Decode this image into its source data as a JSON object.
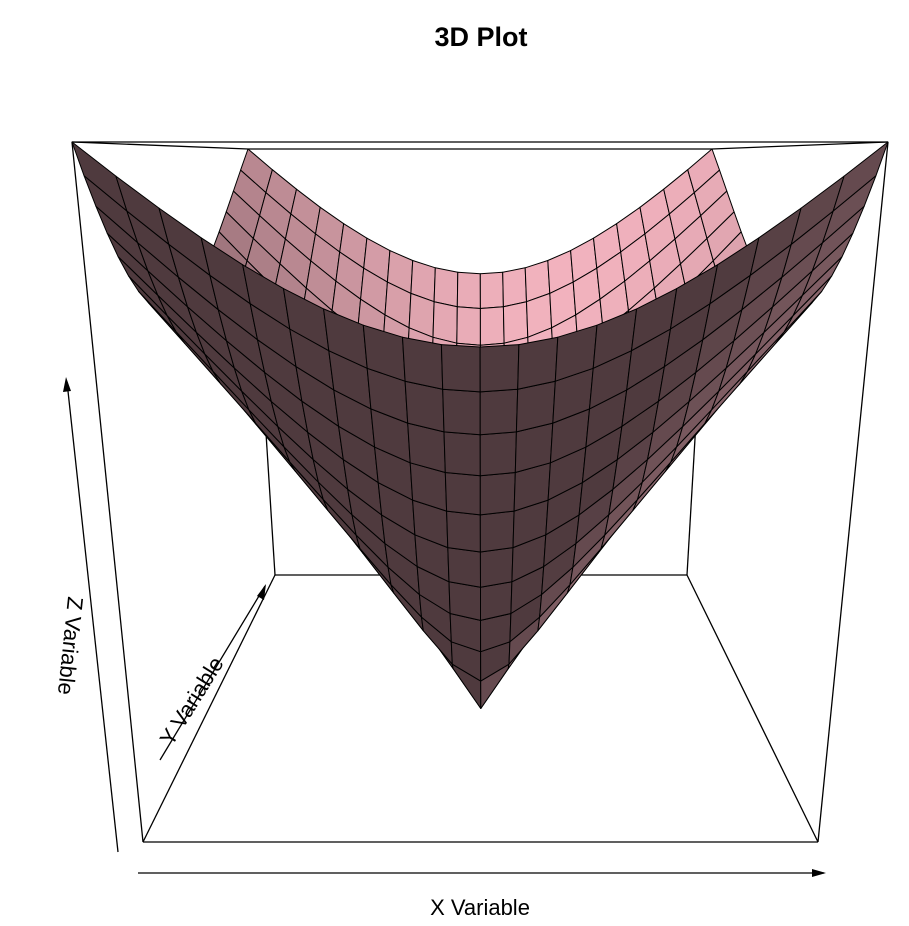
{
  "chart_data": {
    "type": "surface",
    "title": "3D Plot",
    "xlabel": "X Variable",
    "ylabel": "Y Variable",
    "zlabel": "Z Variable",
    "x": [
      -10,
      -9,
      -8,
      -7,
      -6,
      -5,
      -4,
      -3,
      -2,
      -1,
      0,
      1,
      2,
      3,
      4,
      5,
      6,
      7,
      8,
      9,
      10
    ],
    "y": [
      -10,
      -9,
      -8,
      -7,
      -6,
      -5,
      -4,
      -3,
      -2,
      -1,
      0,
      1,
      2,
      3,
      4,
      5,
      6,
      7,
      8,
      9,
      10
    ],
    "z_function": "z = sqrt(x^2 + y^2)",
    "surface_color": "#f7b6c2",
    "box": true,
    "grid": false
  }
}
